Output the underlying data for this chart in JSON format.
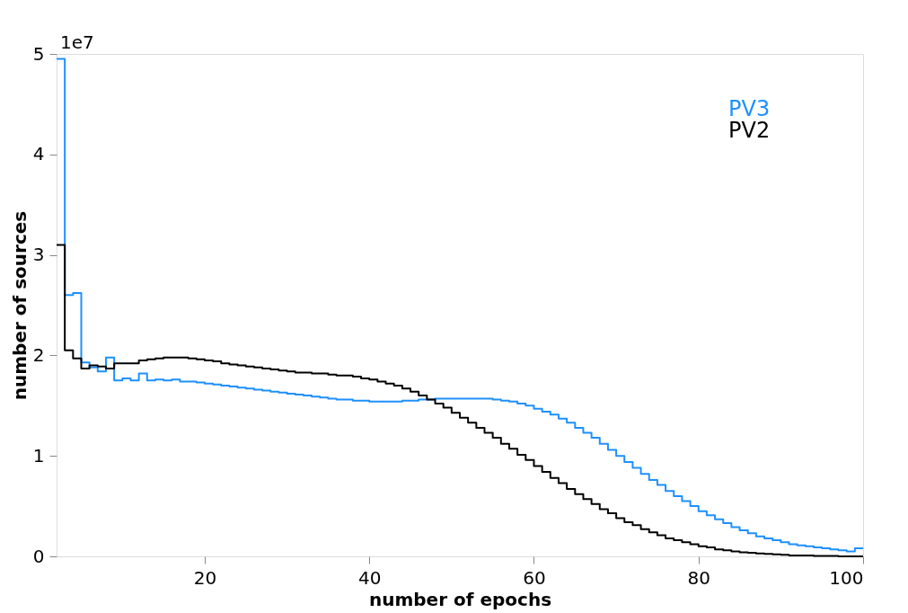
{
  "chart_data": {
    "type": "histogram",
    "xlabel": "number of epochs",
    "ylabel": "number of sources",
    "bins": [
      2,
      3,
      4,
      5,
      6,
      7,
      8,
      9,
      10,
      11,
      12,
      13,
      14,
      15,
      16,
      17,
      18,
      19,
      20,
      21,
      22,
      23,
      24,
      25,
      26,
      27,
      28,
      29,
      30,
      31,
      32,
      33,
      34,
      35,
      36,
      37,
      38,
      39,
      40,
      41,
      42,
      43,
      44,
      45,
      46,
      47,
      48,
      49,
      50,
      51,
      52,
      53,
      54,
      55,
      56,
      57,
      58,
      59,
      60,
      61,
      62,
      63,
      64,
      65,
      66,
      67,
      68,
      69,
      70,
      71,
      72,
      73,
      74,
      75,
      76,
      77,
      78,
      79,
      80,
      81,
      82,
      83,
      84,
      85,
      86,
      87,
      88,
      89,
      90,
      91,
      92,
      93,
      94,
      95,
      96,
      97,
      98,
      99,
      100
    ],
    "series": [
      {
        "name": "PV3",
        "color": "#1e90ff",
        "values": [
          4.95,
          2.6,
          2.62,
          1.93,
          1.88,
          1.84,
          1.98,
          1.75,
          1.77,
          1.75,
          1.82,
          1.75,
          1.76,
          1.75,
          1.76,
          1.74,
          1.74,
          1.73,
          1.72,
          1.71,
          1.7,
          1.69,
          1.68,
          1.67,
          1.66,
          1.65,
          1.64,
          1.63,
          1.62,
          1.61,
          1.6,
          1.59,
          1.58,
          1.57,
          1.56,
          1.56,
          1.55,
          1.55,
          1.54,
          1.54,
          1.54,
          1.54,
          1.55,
          1.55,
          1.56,
          1.56,
          1.57,
          1.57,
          1.57,
          1.57,
          1.57,
          1.57,
          1.57,
          1.56,
          1.55,
          1.54,
          1.52,
          1.5,
          1.47,
          1.44,
          1.41,
          1.37,
          1.33,
          1.28,
          1.23,
          1.18,
          1.12,
          1.06,
          1.0,
          0.94,
          0.88,
          0.82,
          0.76,
          0.71,
          0.65,
          0.6,
          0.55,
          0.5,
          0.45,
          0.41,
          0.37,
          0.33,
          0.29,
          0.26,
          0.23,
          0.2,
          0.18,
          0.16,
          0.14,
          0.12,
          0.11,
          0.1,
          0.09,
          0.08,
          0.07,
          0.06,
          0.05,
          0.08
        ]
      },
      {
        "name": "PV2",
        "color": "#000000",
        "values": [
          3.1,
          2.05,
          1.97,
          1.87,
          1.9,
          1.89,
          1.87,
          1.92,
          1.92,
          1.92,
          1.95,
          1.96,
          1.97,
          1.98,
          1.98,
          1.98,
          1.97,
          1.96,
          1.95,
          1.94,
          1.92,
          1.91,
          1.9,
          1.89,
          1.88,
          1.87,
          1.86,
          1.85,
          1.84,
          1.83,
          1.83,
          1.82,
          1.82,
          1.81,
          1.8,
          1.8,
          1.79,
          1.77,
          1.76,
          1.74,
          1.72,
          1.7,
          1.67,
          1.64,
          1.6,
          1.56,
          1.52,
          1.48,
          1.43,
          1.38,
          1.33,
          1.28,
          1.23,
          1.18,
          1.12,
          1.07,
          1.01,
          0.96,
          0.9,
          0.84,
          0.78,
          0.73,
          0.67,
          0.62,
          0.57,
          0.52,
          0.47,
          0.43,
          0.38,
          0.34,
          0.31,
          0.27,
          0.24,
          0.21,
          0.18,
          0.16,
          0.14,
          0.12,
          0.1,
          0.09,
          0.07,
          0.06,
          0.05,
          0.04,
          0.035,
          0.03,
          0.025,
          0.02,
          0.015,
          0.01,
          0.01,
          0.01,
          0.005,
          0.005,
          0.005,
          0.0,
          0.0,
          0.0
        ]
      }
    ],
    "xlim": [
      2,
      100
    ],
    "xticks": [
      20,
      40,
      60,
      80,
      100
    ],
    "ylim": [
      0,
      5
    ],
    "yticks": [
      0,
      1,
      2,
      3,
      4,
      5
    ],
    "annotations": [
      "1e7"
    ],
    "legend": "top right",
    "grid": false
  }
}
